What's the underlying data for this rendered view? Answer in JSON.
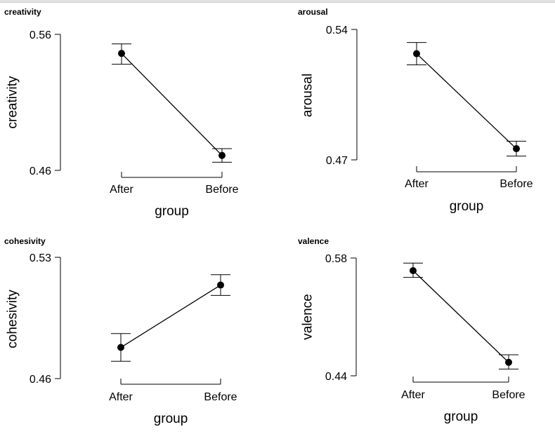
{
  "chart_data": [
    {
      "type": "line",
      "title": "creativity",
      "xlabel": "group",
      "ylabel": "creativity",
      "categories": [
        "After",
        "Before"
      ],
      "yticks": [
        "0.56",
        "0.46"
      ],
      "ylim": [
        0.46,
        0.56
      ],
      "series": [
        {
          "values": [
            0.546,
            0.471
          ],
          "error_low": [
            0.538,
            0.466
          ],
          "error_high": [
            0.553,
            0.476
          ]
        }
      ]
    },
    {
      "type": "line",
      "title": "arousal",
      "xlabel": "group",
      "ylabel": "arousal",
      "categories": [
        "After",
        "Before"
      ],
      "yticks": [
        "0.54",
        "0.47"
      ],
      "ylim": [
        0.47,
        0.54
      ],
      "series": [
        {
          "values": [
            0.527,
            0.476
          ],
          "error_low": [
            0.521,
            0.472
          ],
          "error_high": [
            0.533,
            0.48
          ]
        }
      ]
    },
    {
      "type": "line",
      "title": "cohesivity",
      "xlabel": "group",
      "ylabel": "cohesivity",
      "categories": [
        "After",
        "Before"
      ],
      "yticks": [
        "0.53",
        "0.46"
      ],
      "ylim": [
        0.46,
        0.53
      ],
      "series": [
        {
          "values": [
            0.478,
            0.514
          ],
          "error_low": [
            0.47,
            0.508
          ],
          "error_high": [
            0.486,
            0.52
          ]
        }
      ]
    },
    {
      "type": "line",
      "title": "valence",
      "xlabel": "group",
      "ylabel": "valence",
      "categories": [
        "After",
        "Before"
      ],
      "yticks": [
        "0.58",
        "0.44"
      ],
      "ylim": [
        0.44,
        0.58
      ],
      "series": [
        {
          "values": [
            0.565,
            0.456
          ],
          "error_low": [
            0.557,
            0.448
          ],
          "error_high": [
            0.574,
            0.465
          ]
        }
      ]
    }
  ]
}
